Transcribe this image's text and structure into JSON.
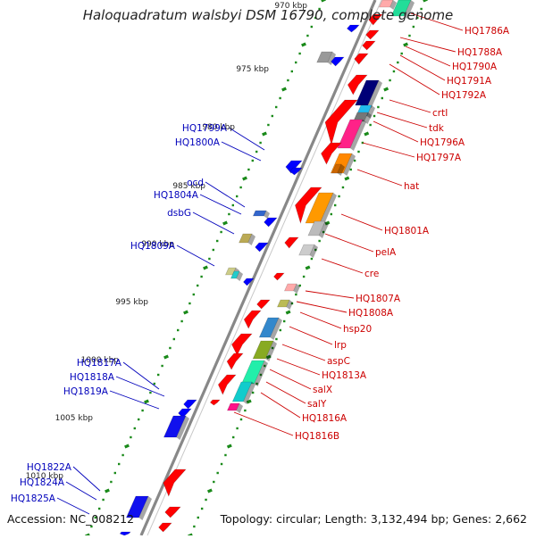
{
  "title": "Haloquadratum walsbyi DSM 16790, complete genome",
  "accession": "Accession: NC_008212",
  "topology": "Topology: circular; Length: 3,132,494 bp; Genes: 2,662",
  "colors": {
    "forward": "#ff0000",
    "reverse": "#0000ff",
    "tick": "#1a8a1a",
    "backbone": "#888888",
    "label_forward": "#cc0000",
    "label_reverse": "#0000bb"
  },
  "scale_labels": [
    "970 kbp",
    "975 kbp",
    "980 kbp",
    "985 kbp",
    "990 kbp",
    "995 kbp",
    "1000 kbp",
    "1005 kbp",
    "1010 kbp"
  ],
  "forward_labels": [
    "HQ1786A",
    "HQ1788A",
    "HQ1790A",
    "HQ1791A",
    "HQ1792A",
    "crtI",
    "tdk",
    "HQ1796A",
    "HQ1797A",
    "hat",
    "HQ1801A",
    "pelA",
    "cre",
    "HQ1807A",
    "HQ1808A",
    "hsp20",
    "lrp",
    "aspC",
    "HQ1813A",
    "salX",
    "salY",
    "HQ1816A",
    "HQ1816B"
  ],
  "reverse_labels": [
    "HQ1799A",
    "HQ1800A",
    "ocd",
    "HQ1804A",
    "dsbG",
    "HQ1809A",
    "HQ1817A",
    "HQ1818A",
    "HQ1819A",
    "HQ1822A",
    "HQ1824A",
    "HQ1825A"
  ]
}
